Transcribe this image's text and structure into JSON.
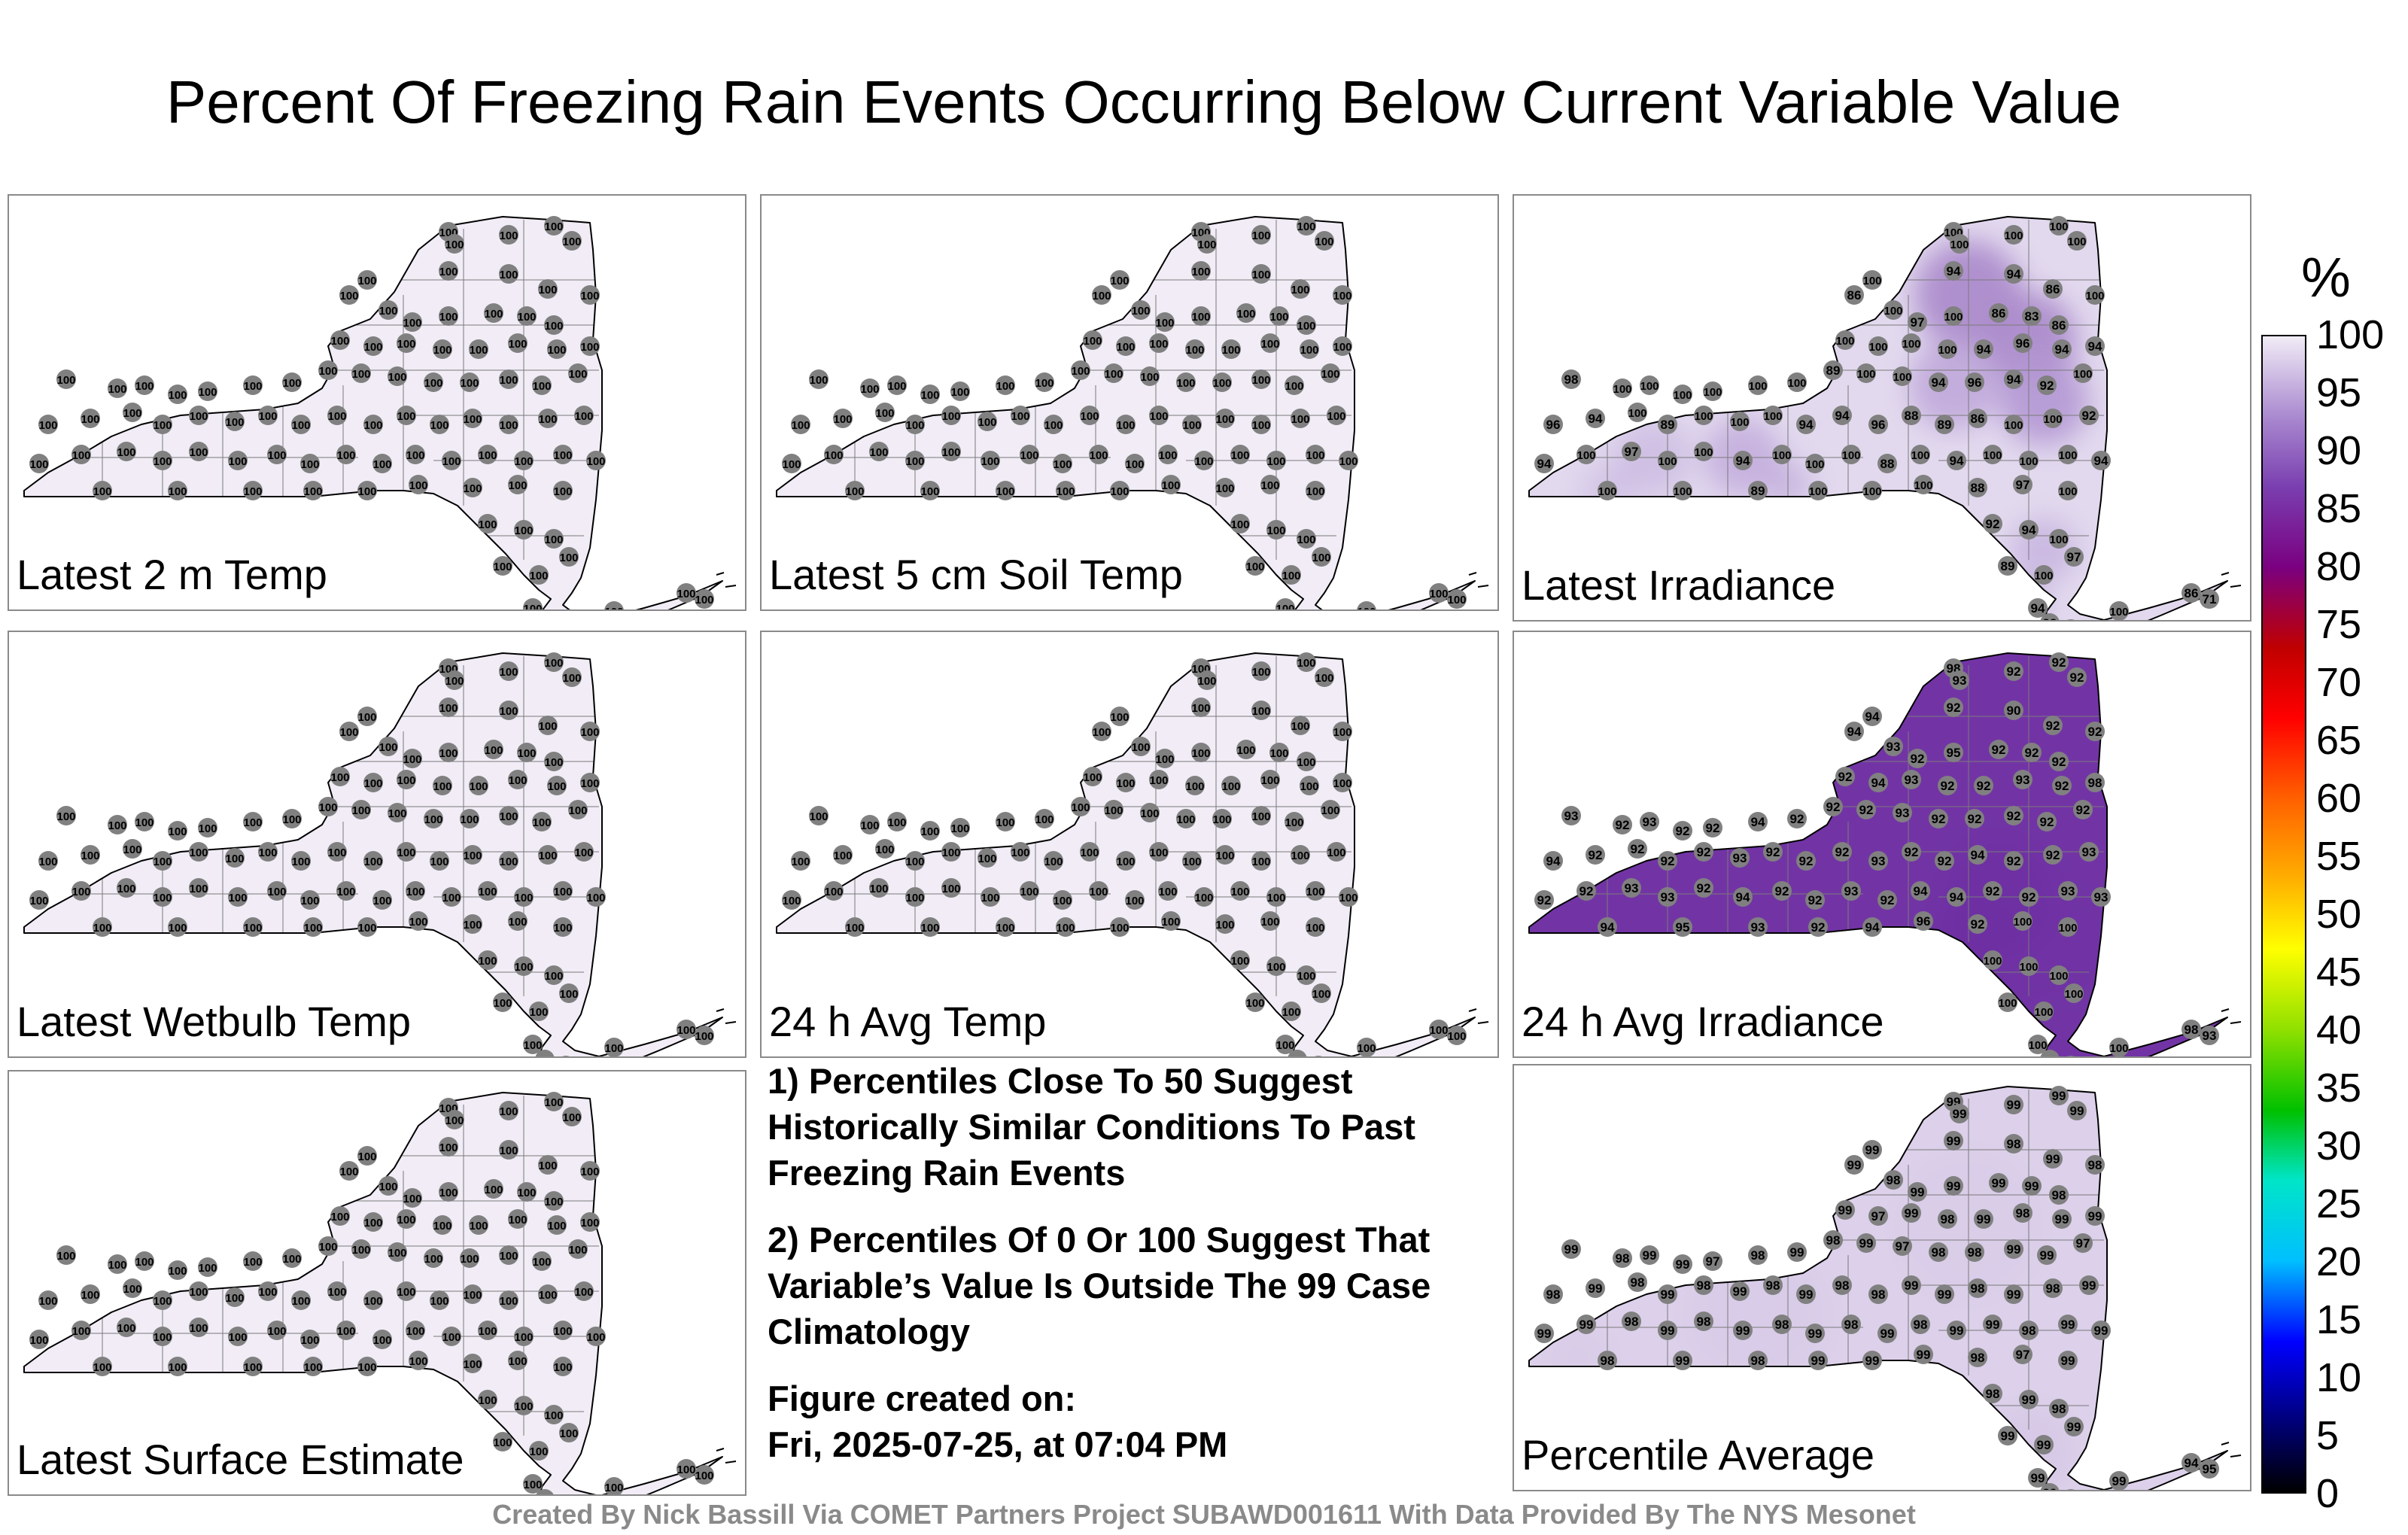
{
  "title": "Percent Of Freezing Rain Events Occurring Below Current Variable Value",
  "panels": [
    {
      "label": "Latest 2 m Temp",
      "mode": "uniform",
      "value": "100"
    },
    {
      "label": "Latest 5 cm Soil Temp",
      "mode": "uniform",
      "value": "100"
    },
    {
      "label": "Latest Irradiance",
      "mode": "irr"
    },
    {
      "label": "Latest Wetbulb Temp",
      "mode": "uniform",
      "value": "100"
    },
    {
      "label": "24 h Avg Temp",
      "mode": "uniform",
      "value": "100"
    },
    {
      "label": "24 h Avg Irradiance",
      "mode": "avgirr"
    },
    {
      "label": "Latest Surface Estimate",
      "mode": "uniform",
      "value": "100"
    },
    {
      "label": "Percentile Average",
      "mode": "avg"
    }
  ],
  "notes": {
    "note1": "1) Percentiles Close To 50 Suggest Historically Similar Conditions To Past Freezing Rain Events",
    "note2": "2) Percentiles Of 0 Or 100 Suggest That Variable’s Value Is Outside The 99 Case Climatology",
    "created_label": "Figure created on:",
    "created_value": "Fri, 2025-07-25, at 07:04 PM"
  },
  "credit": "Created By Nick Bassill Via COMET Partners Project SUBAWD001611 With Data Provided By The NYS Mesonet",
  "colorbar": {
    "unit": "%",
    "ticks": [
      "100",
      "95",
      "90",
      "85",
      "80",
      "75",
      "70",
      "65",
      "60",
      "55",
      "50",
      "45",
      "40",
      "35",
      "30",
      "25",
      "20",
      "15",
      "10",
      "5",
      "0"
    ],
    "stops": [
      "#000000",
      "#00008b",
      "#0000ff",
      "#00bfff",
      "#00e5c8",
      "#00c000",
      "#90e000",
      "#ffff00",
      "#ffb000",
      "#ff6000",
      "#ff0000",
      "#c00000",
      "#7a0080",
      "#7a3fb0",
      "#a989cf",
      "#f1ecf6"
    ]
  },
  "map_colors": {
    "base": "#f1ecf6",
    "deep": "#6a2aa0",
    "mid": "#a889cf",
    "station": "#808080",
    "outline": "#000000"
  }
}
